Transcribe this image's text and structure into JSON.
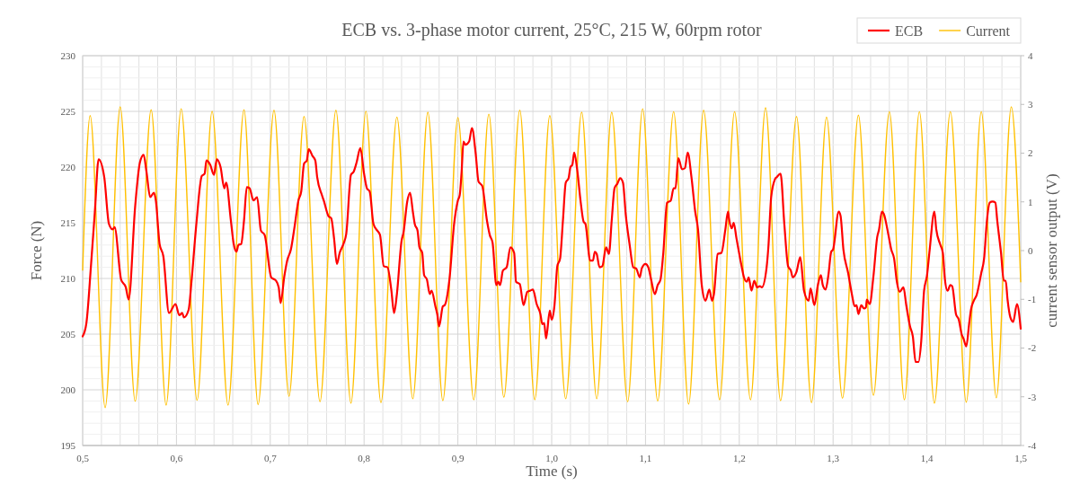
{
  "chart_data": {
    "type": "line",
    "title": "ECB vs. 3-phase motor current, 25°C, 215 W, 60rpm rotor",
    "xlabel": "Time (s)",
    "ylabel": "Force (N)",
    "y2label": "current sensor output (V)",
    "xlim": [
      0.5,
      1.5
    ],
    "xticks": [
      {
        "value": 0.5,
        "label": "0,5"
      },
      {
        "value": 0.52,
        "label": null
      },
      {
        "value": 0.54,
        "label": null
      },
      {
        "value": 0.56,
        "label": null
      },
      {
        "value": 0.58,
        "label": null
      },
      {
        "value": 0.6,
        "label": "0,6"
      },
      {
        "value": 0.62,
        "label": null
      },
      {
        "value": 0.64,
        "label": null
      },
      {
        "value": 0.66,
        "label": null
      },
      {
        "value": 0.68,
        "label": null
      },
      {
        "value": 0.7,
        "label": "0,7"
      },
      {
        "value": 0.72,
        "label": null
      },
      {
        "value": 0.74,
        "label": null
      },
      {
        "value": 0.76,
        "label": null
      },
      {
        "value": 0.78,
        "label": null
      },
      {
        "value": 0.8,
        "label": "0,8"
      },
      {
        "value": 0.82,
        "label": null
      },
      {
        "value": 0.84,
        "label": null
      },
      {
        "value": 0.86,
        "label": null
      },
      {
        "value": 0.88,
        "label": null
      },
      {
        "value": 0.9,
        "label": "0,9"
      },
      {
        "value": 0.92,
        "label": null
      },
      {
        "value": 0.94,
        "label": null
      },
      {
        "value": 0.96,
        "label": null
      },
      {
        "value": 0.98,
        "label": null
      },
      {
        "value": 1.0,
        "label": "1,0"
      },
      {
        "value": 1.02,
        "label": null
      },
      {
        "value": 1.04,
        "label": null
      },
      {
        "value": 1.06,
        "label": null
      },
      {
        "value": 1.08,
        "label": null
      },
      {
        "value": 1.1,
        "label": "1,1"
      },
      {
        "value": 1.12,
        "label": null
      },
      {
        "value": 1.14,
        "label": null
      },
      {
        "value": 1.16,
        "label": null
      },
      {
        "value": 1.18,
        "label": null
      },
      {
        "value": 1.2,
        "label": "1,2"
      },
      {
        "value": 1.22,
        "label": null
      },
      {
        "value": 1.24,
        "label": null
      },
      {
        "value": 1.26,
        "label": null
      },
      {
        "value": 1.28,
        "label": null
      },
      {
        "value": 1.3,
        "label": "1,3"
      },
      {
        "value": 1.32,
        "label": null
      },
      {
        "value": 1.34,
        "label": null
      },
      {
        "value": 1.36,
        "label": null
      },
      {
        "value": 1.38,
        "label": null
      },
      {
        "value": 1.4,
        "label": "1,4"
      },
      {
        "value": 1.42,
        "label": null
      },
      {
        "value": 1.44,
        "label": null
      },
      {
        "value": 1.46,
        "label": null
      },
      {
        "value": 1.48,
        "label": null
      },
      {
        "value": 1.5,
        "label": "1,5"
      }
    ],
    "ylim": [
      195,
      230
    ],
    "yticks": [
      195,
      {
        "value": 196,
        "label": null
      },
      {
        "value": 197,
        "label": null
      },
      {
        "value": 198,
        "label": null
      },
      {
        "value": 199,
        "label": null
      },
      200,
      {
        "value": 201,
        "label": null
      },
      {
        "value": 202,
        "label": null
      },
      {
        "value": 203,
        "label": null
      },
      {
        "value": 204,
        "label": null
      },
      205,
      {
        "value": 206,
        "label": null
      },
      {
        "value": 207,
        "label": null
      },
      {
        "value": 208,
        "label": null
      },
      {
        "value": 209,
        "label": null
      },
      210,
      {
        "value": 211,
        "label": null
      },
      {
        "value": 212,
        "label": null
      },
      {
        "value": 213,
        "label": null
      },
      {
        "value": 214,
        "label": null
      },
      215,
      {
        "value": 216,
        "label": null
      },
      {
        "value": 217,
        "label": null
      },
      {
        "value": 218,
        "label": null
      },
      {
        "value": 219,
        "label": null
      },
      220,
      {
        "value": 221,
        "label": null
      },
      {
        "value": 222,
        "label": null
      },
      {
        "value": 223,
        "label": null
      },
      {
        "value": 224,
        "label": null
      },
      225,
      {
        "value": 226,
        "label": null
      },
      {
        "value": 227,
        "label": null
      },
      {
        "value": 228,
        "label": null
      },
      {
        "value": 229,
        "label": null
      },
      230
    ],
    "y2lim": [
      -4,
      4
    ],
    "y2ticks": [
      -4,
      -3,
      -2,
      -1,
      0,
      1,
      2,
      3,
      4
    ],
    "grid": true,
    "legend": "top right",
    "series": [
      {
        "name": "ECB",
        "color": "#ff0000",
        "x": [
          0.5,
          0.504,
          0.509,
          0.513,
          0.517,
          0.523,
          0.528,
          0.532,
          0.534,
          0.541,
          0.546,
          0.549,
          0.556,
          0.561,
          0.565,
          0.568,
          0.572,
          0.576,
          0.578,
          0.582,
          0.586,
          0.592,
          0.599,
          0.603,
          0.606,
          0.608,
          0.613,
          0.616,
          0.621,
          0.627,
          0.63,
          0.632,
          0.636,
          0.64,
          0.643,
          0.647,
          0.651,
          0.653,
          0.658,
          0.661,
          0.664,
          0.666,
          0.669,
          0.672,
          0.675,
          0.678,
          0.682,
          0.686,
          0.69,
          0.694,
          0.701,
          0.706,
          0.709,
          0.711,
          0.715,
          0.718,
          0.722,
          0.726,
          0.73,
          0.733,
          0.736,
          0.739,
          0.741,
          0.745,
          0.748,
          0.75,
          0.755,
          0.757,
          0.762,
          0.765,
          0.768,
          0.771,
          0.774,
          0.778,
          0.781,
          0.786,
          0.789,
          0.792,
          0.796,
          0.8,
          0.803,
          0.806,
          0.81,
          0.814,
          0.817,
          0.821,
          0.825,
          0.829,
          0.832,
          0.835,
          0.84,
          0.842,
          0.846,
          0.849,
          0.852,
          0.854,
          0.857,
          0.859,
          0.862,
          0.864,
          0.867,
          0.87,
          0.872,
          0.876,
          0.878,
          0.88,
          0.884,
          0.886,
          0.891,
          0.896,
          0.9,
          0.902,
          0.904,
          0.906,
          0.908,
          0.912,
          0.915,
          0.919,
          0.922,
          0.924,
          0.926,
          0.931,
          0.934,
          0.937,
          0.941,
          0.943,
          0.945,
          0.948,
          0.952,
          0.956,
          0.96,
          0.962,
          0.966,
          0.97,
          0.974,
          0.977,
          0.98,
          0.984,
          0.988,
          0.99,
          0.992,
          0.994,
          0.998,
          1.0,
          1.003,
          1.006,
          1.009,
          1.012,
          1.015,
          1.018,
          1.02,
          1.022,
          1.024,
          1.027,
          1.031,
          1.034,
          1.036,
          1.041,
          1.044,
          1.046,
          1.048,
          1.051,
          1.054,
          1.058,
          1.061,
          1.064,
          1.067,
          1.07,
          1.073,
          1.076,
          1.079,
          1.083,
          1.087,
          1.09,
          1.094,
          1.096,
          1.1,
          1.103,
          1.106,
          1.11,
          1.113,
          1.116,
          1.119,
          1.123,
          1.127,
          1.13,
          1.132,
          1.135,
          1.139,
          1.142,
          1.145,
          1.149,
          1.153,
          1.156,
          1.16,
          1.164,
          1.168,
          1.171,
          1.173,
          1.177,
          1.181,
          1.185,
          1.188,
          1.189,
          1.192,
          1.194,
          1.197,
          1.202,
          1.205,
          1.208,
          1.21,
          1.213,
          1.216,
          1.219,
          1.222,
          1.224,
          1.229,
          1.231,
          1.234,
          1.238,
          1.24,
          1.244,
          1.248,
          1.252,
          1.255,
          1.257,
          1.261,
          1.265,
          1.269,
          1.274,
          1.276,
          1.28,
          1.284,
          1.287,
          1.289,
          1.292,
          1.295,
          1.298,
          1.3,
          1.306,
          1.308,
          1.311,
          1.316,
          1.32,
          1.323,
          1.325,
          1.327,
          1.33,
          1.333,
          1.335,
          1.336,
          1.339,
          1.343,
          1.347,
          1.349,
          1.352,
          1.354,
          1.359,
          1.362,
          1.365,
          1.368,
          1.371,
          1.375,
          1.378,
          1.382,
          1.385,
          1.388,
          1.391,
          1.394,
          1.397,
          1.4,
          1.403,
          1.408,
          1.41,
          1.414,
          1.417,
          1.419,
          1.422,
          1.425,
          1.427,
          1.431,
          1.434,
          1.437,
          1.439,
          1.442,
          1.445,
          1.447,
          1.45,
          1.453,
          1.458,
          1.461,
          1.464,
          1.467,
          1.47,
          1.473,
          1.475,
          1.479,
          1.482,
          1.484,
          1.486,
          1.489,
          1.492,
          1.496,
          1.5
        ],
        "values": [
          204.8,
          206.0,
          211.3,
          216.0,
          220.7,
          219.1,
          214.9,
          214.4,
          214.6,
          209.9,
          209.2,
          208.1,
          216.5,
          220.4,
          221.1,
          219.6,
          217.3,
          217.7,
          217.0,
          213.1,
          212.0,
          206.9,
          207.7,
          206.7,
          206.9,
          206.5,
          207.2,
          209.7,
          214.7,
          219.2,
          219.4,
          220.6,
          220.2,
          219.3,
          220.7,
          220.0,
          218.1,
          218.6,
          215.2,
          213.1,
          212.4,
          213.0,
          213.1,
          215.2,
          218.2,
          218.1,
          217.0,
          217.3,
          214.3,
          213.9,
          210.1,
          209.8,
          209.2,
          207.8,
          210.2,
          211.6,
          212.6,
          214.7,
          217.0,
          217.8,
          220.3,
          220.6,
          221.6,
          221.0,
          220.6,
          219.1,
          217.5,
          217.0,
          215.6,
          215.4,
          213.6,
          211.3,
          212.3,
          213.1,
          214.0,
          219.3,
          219.6,
          220.4,
          221.7,
          219.4,
          218.1,
          217.8,
          214.9,
          214.3,
          213.9,
          211.1,
          211.0,
          209.0,
          206.9,
          208.6,
          213.4,
          214.1,
          216.9,
          217.7,
          216.0,
          214.9,
          214.3,
          212.8,
          212.3,
          210.3,
          209.9,
          208.6,
          208.9,
          207.5,
          206.8,
          205.7,
          207.5,
          207.6,
          209.9,
          214.9,
          217.0,
          217.5,
          219.6,
          222.3,
          222.0,
          222.3,
          223.5,
          221.2,
          218.7,
          218.5,
          218.3,
          215.2,
          213.9,
          213.2,
          209.4,
          209.7,
          209.4,
          210.7,
          211.0,
          212.8,
          212.3,
          209.7,
          209.5,
          207.6,
          208.8,
          208.9,
          209.0,
          207.7,
          206.8,
          205.9,
          206.0,
          204.6,
          207.1,
          206.3,
          207.6,
          211.1,
          211.8,
          215.2,
          218.6,
          219.0,
          220.0,
          220.2,
          221.3,
          219.9,
          216.8,
          215.1,
          214.9,
          211.6,
          211.6,
          212.4,
          212.2,
          211.0,
          211.1,
          212.8,
          212.2,
          215.2,
          218.1,
          218.5,
          219.0,
          218.6,
          215.7,
          213.1,
          211.0,
          210.9,
          210.1,
          210.9,
          211.3,
          211.0,
          209.9,
          208.6,
          209.4,
          209.9,
          212.3,
          216.8,
          217.0,
          218.1,
          218.1,
          220.8,
          219.8,
          219.9,
          221.3,
          219.1,
          216.0,
          214.4,
          209.4,
          208.0,
          209.0,
          208.0,
          208.6,
          212.2,
          212.3,
          214.3,
          216.0,
          215.4,
          214.5,
          215.0,
          213.6,
          211.3,
          210.1,
          209.7,
          210.1,
          208.9,
          209.8,
          209.2,
          209.3,
          209.2,
          210.9,
          212.8,
          217.3,
          218.9,
          219.1,
          219.4,
          214.9,
          211.1,
          210.7,
          210.1,
          210.6,
          211.9,
          208.9,
          208.0,
          209.1,
          207.6,
          209.5,
          210.3,
          209.4,
          209.0,
          210.3,
          212.4,
          212.6,
          216.0,
          215.6,
          212.6,
          210.5,
          208.6,
          207.5,
          207.6,
          206.8,
          207.6,
          207.3,
          207.4,
          208.1,
          207.7,
          210.2,
          213.7,
          214.4,
          216.0,
          215.8,
          213.9,
          212.6,
          211.8,
          209.7,
          208.8,
          209.2,
          207.6,
          205.7,
          204.8,
          202.5,
          202.5,
          204.4,
          208.9,
          210.2,
          212.6,
          216.0,
          214.4,
          213.1,
          212.3,
          210.1,
          208.9,
          209.4,
          209.3,
          206.8,
          206.3,
          205.0,
          204.6,
          203.9,
          205.9,
          207.2,
          208.0,
          208.5,
          210.5,
          211.8,
          215.2,
          216.8,
          216.9,
          216.8,
          215.2,
          212.3,
          209.8,
          209.8,
          208.1,
          206.5,
          206.1,
          207.7,
          205.5
        ]
      },
      {
        "name": "Current",
        "color": "#ffc000",
        "axis": "y2",
        "x": [
          0.5,
          0.508,
          0.524,
          0.54,
          0.556,
          0.573,
          0.589,
          0.605,
          0.622,
          0.638,
          0.655,
          0.672,
          0.687,
          0.704,
          0.72,
          0.736,
          0.753,
          0.77,
          0.786,
          0.802,
          0.818,
          0.835,
          0.852,
          0.868,
          0.884,
          0.9,
          0.917,
          0.933,
          0.949,
          0.966,
          0.982,
          0.998,
          1.015,
          1.032,
          1.048,
          1.064,
          1.081,
          1.097,
          1.113,
          1.13,
          1.146,
          1.162,
          1.179,
          1.195,
          1.212,
          1.228,
          1.244,
          1.261,
          1.277,
          1.293,
          1.31,
          1.327,
          1.343,
          1.36,
          1.376,
          1.392,
          1.408,
          1.425,
          1.442,
          1.458,
          1.474,
          1.49,
          1.5
        ],
        "values": [
          -0.4,
          2.77,
          -3.22,
          2.95,
          -3.09,
          2.89,
          -3.17,
          2.91,
          -3.07,
          2.86,
          -3.17,
          2.89,
          -3.16,
          2.88,
          -2.99,
          2.75,
          -3.1,
          2.88,
          -3.13,
          2.86,
          -3.12,
          2.74,
          -3.04,
          2.84,
          -3.08,
          2.73,
          -3.06,
          2.8,
          -3.01,
          2.88,
          -3.06,
          2.77,
          -3.04,
          2.84,
          -3.04,
          2.84,
          -3.1,
          2.91,
          -3.09,
          2.85,
          -3.15,
          2.88,
          -3.06,
          2.85,
          -3.06,
          2.93,
          -3.08,
          2.75,
          -3.12,
          2.74,
          -3.03,
          2.78,
          -2.97,
          2.85,
          -3.06,
          2.85,
          -3.13,
          2.85,
          -3.11,
          2.85,
          -3.02,
          2.95,
          -0.64
        ]
      }
    ]
  }
}
